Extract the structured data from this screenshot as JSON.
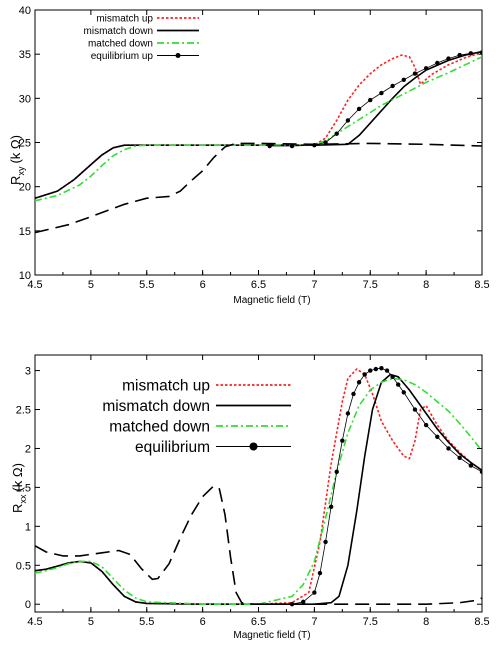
{
  "chart_data": [
    {
      "type": "line",
      "xlabel": "Magnetic field (T)",
      "ylabel": "R",
      "ylabel_sub": "xy",
      "ylabel_unit": "(k Ω)",
      "xlim": [
        4.5,
        8.5
      ],
      "ylim": [
        10,
        40
      ],
      "xticks": [
        "4.5",
        "5",
        "5.5",
        "6",
        "6.5",
        "7",
        "7.5",
        "8",
        "8.5"
      ],
      "yticks": [
        "10",
        "15",
        "20",
        "25",
        "30",
        "35",
        "40"
      ],
      "legend_position": "top-left",
      "series": [
        {
          "name": "mismatch up",
          "color": "#ff2020",
          "style": "dotted",
          "x": [
            4.5,
            4.7,
            4.85,
            5.0,
            5.1,
            5.2,
            5.3,
            5.5,
            6.0,
            6.5,
            7.0,
            7.1,
            7.2,
            7.3,
            7.4,
            7.5,
            7.6,
            7.7,
            7.78,
            7.85,
            7.9,
            7.95,
            8.05,
            8.2,
            8.35,
            8.5
          ],
          "y": [
            18.7,
            19.5,
            20.8,
            22.5,
            23.6,
            24.4,
            24.7,
            24.7,
            24.7,
            24.7,
            24.7,
            25.5,
            27.5,
            29.8,
            31.5,
            32.8,
            33.8,
            34.5,
            34.9,
            34.7,
            33.5,
            31.6,
            32.7,
            33.8,
            34.6,
            35.2
          ]
        },
        {
          "name": "mismatch down",
          "color": "#000000",
          "style": "solid",
          "x": [
            4.5,
            4.7,
            4.85,
            5.0,
            5.1,
            5.2,
            5.3,
            5.5,
            6.0,
            6.5,
            7.0,
            7.3,
            7.4,
            7.5,
            7.6,
            7.7,
            7.8,
            7.9,
            8.0,
            8.2,
            8.35,
            8.5
          ],
          "y": [
            18.7,
            19.5,
            20.8,
            22.5,
            23.6,
            24.4,
            24.7,
            24.7,
            24.7,
            24.7,
            24.7,
            24.8,
            25.8,
            27.2,
            28.6,
            30.0,
            31.3,
            32.3,
            33.2,
            34.3,
            34.9,
            35.3
          ]
        },
        {
          "name": "matched down",
          "color": "#33dd33",
          "style": "dashdot",
          "x": [
            4.5,
            4.7,
            4.9,
            5.0,
            5.1,
            5.2,
            5.3,
            5.4,
            5.5,
            6.0,
            6.5,
            7.0,
            7.1,
            7.2,
            7.3,
            7.4,
            7.5,
            7.6,
            7.8,
            8.0,
            8.2,
            8.35,
            8.5
          ],
          "y": [
            18.4,
            19.0,
            20.2,
            21.2,
            22.4,
            23.5,
            24.2,
            24.6,
            24.7,
            24.7,
            24.7,
            24.7,
            25.2,
            26.0,
            26.8,
            27.6,
            28.4,
            29.2,
            30.5,
            31.8,
            32.9,
            33.8,
            34.7
          ]
        },
        {
          "name": "equilibrium up",
          "color": "#000000",
          "style": "markers",
          "x": [
            6.6,
            6.8,
            7.0,
            7.1,
            7.2,
            7.3,
            7.4,
            7.5,
            7.6,
            7.7,
            7.8,
            7.9,
            8.0,
            8.1,
            8.2,
            8.3,
            8.4,
            8.5
          ],
          "y": [
            24.6,
            24.6,
            24.7,
            25.0,
            26.0,
            27.5,
            28.8,
            29.8,
            30.6,
            31.4,
            32.1,
            32.8,
            33.4,
            34.0,
            34.5,
            34.9,
            35.1,
            35.2
          ]
        },
        {
          "name": "",
          "color": "#000000",
          "style": "longdash",
          "x": [
            4.5,
            4.8,
            5.0,
            5.3,
            5.5,
            5.7,
            5.8,
            5.9,
            6.0,
            6.1,
            6.2,
            6.3,
            6.5,
            7.0,
            7.5,
            8.0,
            8.5
          ],
          "y": [
            14.8,
            15.7,
            16.6,
            18.0,
            18.7,
            18.9,
            19.5,
            20.7,
            21.8,
            23.3,
            24.5,
            24.9,
            24.9,
            24.8,
            24.9,
            24.8,
            24.6
          ]
        }
      ]
    },
    {
      "type": "line",
      "xlabel": "Magnetic field (T)",
      "ylabel": "R",
      "ylabel_sub": "xx",
      "ylabel_unit": "(k Ω)",
      "xlim": [
        4.5,
        8.5
      ],
      "ylim": [
        -0.1,
        3.2
      ],
      "xticks": [
        "4.5",
        "5",
        "5.5",
        "6",
        "6.5",
        "7",
        "7.5",
        "8",
        "8.5"
      ],
      "yticks": [
        "0",
        "0.5",
        "1",
        "1.5",
        "2",
        "2.5",
        "3"
      ],
      "legend_position": "top-left",
      "series": [
        {
          "name": "mismatch up",
          "color": "#ff2020",
          "style": "dotted",
          "x": [
            4.5,
            4.6,
            4.7,
            4.8,
            4.9,
            5.0,
            5.1,
            5.2,
            5.3,
            5.4,
            5.5,
            6.0,
            6.5,
            6.8,
            6.95,
            7.05,
            7.15,
            7.25,
            7.3,
            7.38,
            7.45,
            7.52,
            7.6,
            7.7,
            7.8,
            7.85,
            7.9,
            7.95,
            8.0,
            8.1,
            8.2,
            8.3,
            8.4,
            8.5
          ],
          "y": [
            0.43,
            0.45,
            0.49,
            0.53,
            0.55,
            0.53,
            0.42,
            0.25,
            0.1,
            0.03,
            0.01,
            0.0,
            0.0,
            0.02,
            0.15,
            0.8,
            1.8,
            2.6,
            2.9,
            3.02,
            2.95,
            2.7,
            2.35,
            2.1,
            1.9,
            1.87,
            2.1,
            2.5,
            2.55,
            2.3,
            2.1,
            1.95,
            1.82,
            1.72
          ]
        },
        {
          "name": "mismatch down",
          "color": "#000000",
          "style": "solid",
          "x": [
            4.5,
            4.6,
            4.7,
            4.8,
            4.9,
            5.0,
            5.1,
            5.2,
            5.3,
            5.4,
            5.5,
            6.0,
            6.5,
            7.0,
            7.15,
            7.22,
            7.3,
            7.38,
            7.45,
            7.52,
            7.6,
            7.68,
            7.75,
            7.85,
            8.0,
            8.1,
            8.2,
            8.3,
            8.4,
            8.5
          ],
          "y": [
            0.43,
            0.45,
            0.49,
            0.53,
            0.55,
            0.53,
            0.42,
            0.25,
            0.1,
            0.03,
            0.01,
            0.0,
            0.0,
            0.0,
            0.02,
            0.1,
            0.5,
            1.2,
            1.9,
            2.5,
            2.85,
            2.95,
            2.92,
            2.75,
            2.45,
            2.25,
            2.08,
            1.93,
            1.82,
            1.72
          ]
        },
        {
          "name": "matched down",
          "color": "#33dd33",
          "style": "dashdot",
          "x": [
            4.5,
            4.6,
            4.7,
            4.8,
            4.9,
            5.0,
            5.1,
            5.2,
            5.3,
            5.4,
            5.5,
            6.0,
            6.5,
            6.8,
            6.9,
            7.0,
            7.1,
            7.2,
            7.3,
            7.4,
            7.5,
            7.6,
            7.7,
            7.8,
            7.9,
            8.0,
            8.1,
            8.2,
            8.3,
            8.4,
            8.5
          ],
          "y": [
            0.4,
            0.43,
            0.47,
            0.52,
            0.55,
            0.55,
            0.48,
            0.33,
            0.18,
            0.08,
            0.03,
            0.0,
            0.0,
            0.1,
            0.25,
            0.55,
            1.1,
            1.7,
            2.2,
            2.55,
            2.75,
            2.85,
            2.9,
            2.88,
            2.82,
            2.72,
            2.6,
            2.48,
            2.32,
            2.15,
            1.97
          ]
        },
        {
          "name": "equilibrium",
          "color": "#000000",
          "style": "markers",
          "x": [
            6.8,
            6.9,
            7.0,
            7.05,
            7.1,
            7.15,
            7.2,
            7.25,
            7.3,
            7.35,
            7.4,
            7.45,
            7.5,
            7.55,
            7.6,
            7.65,
            7.7,
            7.75,
            7.8,
            7.9,
            8.0,
            8.1,
            8.2,
            8.3,
            8.4,
            8.5
          ],
          "y": [
            0.0,
            0.03,
            0.15,
            0.4,
            0.8,
            1.25,
            1.7,
            2.1,
            2.45,
            2.7,
            2.85,
            2.95,
            3.0,
            3.02,
            3.03,
            3.0,
            2.92,
            2.82,
            2.72,
            2.5,
            2.3,
            2.15,
            2.0,
            1.88,
            1.78,
            1.7
          ]
        },
        {
          "name": "",
          "color": "#000000",
          "style": "longdash",
          "x": [
            4.5,
            4.6,
            4.75,
            4.9,
            5.1,
            5.25,
            5.35,
            5.45,
            5.55,
            5.6,
            5.7,
            5.8,
            5.9,
            6.0,
            6.1,
            6.15,
            6.2,
            6.25,
            6.3,
            6.35,
            6.45,
            6.8,
            7.2,
            7.6,
            8.0,
            8.3,
            8.45,
            8.5
          ],
          "y": [
            0.75,
            0.67,
            0.62,
            0.62,
            0.66,
            0.69,
            0.64,
            0.46,
            0.32,
            0.33,
            0.52,
            0.85,
            1.15,
            1.38,
            1.52,
            1.48,
            1.15,
            0.6,
            0.15,
            0.02,
            0.0,
            0.0,
            0.0,
            0.0,
            0.0,
            0.02,
            0.05,
            0.08
          ]
        }
      ]
    }
  ]
}
